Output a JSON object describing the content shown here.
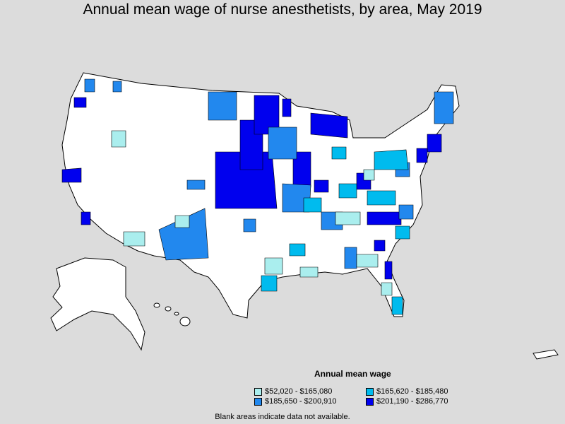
{
  "title": "Annual mean wage of nurse anesthetists, by area, May 2019",
  "legend": {
    "title": "Annual mean wage",
    "items": [
      {
        "label": "$52,020 - $165,080",
        "color": "#aaeeee"
      },
      {
        "label": "$165,620 - $185,480",
        "color": "#00bbee"
      },
      {
        "label": "$185,650 - $200,910",
        "color": "#2288ee"
      },
      {
        "label": "$201,190 - $286,770",
        "color": "#0000ee"
      }
    ]
  },
  "note": "Blank areas indicate data not available.",
  "colors": {
    "background": "#dcdcdc",
    "blank": "#ffffff",
    "border": "#000000"
  }
}
